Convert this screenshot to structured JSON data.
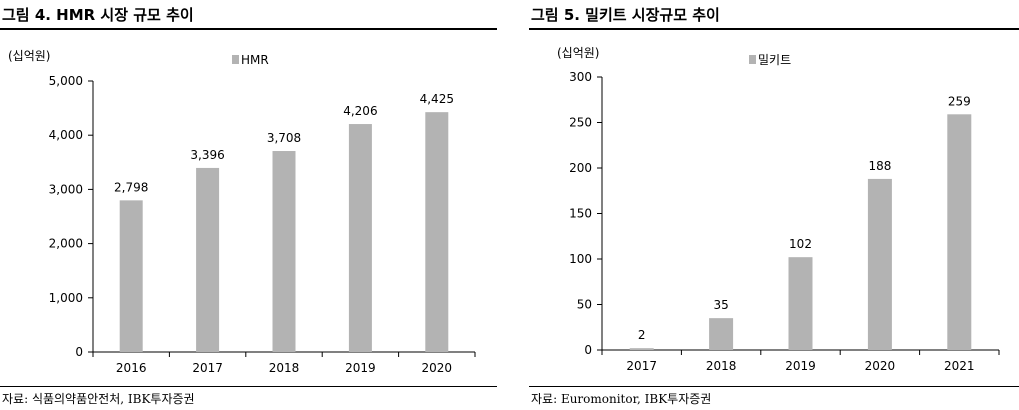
{
  "left": {
    "title": "그림 4. HMR 시장 규모 추이",
    "source": "자료: 식품의약품안전처, IBK투자증권",
    "chart_data": {
      "type": "bar",
      "unit_label": "(십억원)",
      "categories": [
        "2016",
        "2017",
        "2018",
        "2019",
        "2020"
      ],
      "series": [
        {
          "name": "HMR",
          "values": [
            2798,
            3396,
            3708,
            4206,
            4425
          ]
        }
      ],
      "data_labels": [
        "2,798",
        "3,396",
        "3,708",
        "4,206",
        "4,425"
      ],
      "ylim": [
        0,
        5000
      ],
      "yticks": [
        0,
        1000,
        2000,
        3000,
        4000,
        5000
      ],
      "ytick_labels": [
        "0",
        "1,000",
        "2,000",
        "3,000",
        "4,000",
        "5,000"
      ],
      "legend_position": "top-center",
      "grid": false,
      "bar_color": "#b3b3b3"
    }
  },
  "right": {
    "title": "그림 5. 밀키트 시장규모 추이",
    "source": "자료: Euromonitor, IBK투자증권",
    "chart_data": {
      "type": "bar",
      "unit_label": "(십억원)",
      "categories": [
        "2017",
        "2018",
        "2019",
        "2020",
        "2021"
      ],
      "series": [
        {
          "name": "밀키트",
          "values": [
            2,
            35,
            102,
            188,
            259
          ]
        }
      ],
      "data_labels": [
        "2",
        "35",
        "102",
        "188",
        "259"
      ],
      "ylim": [
        0,
        300
      ],
      "yticks": [
        0,
        50,
        100,
        150,
        200,
        250,
        300
      ],
      "ytick_labels": [
        "0",
        "50",
        "100",
        "150",
        "200",
        "250",
        "300"
      ],
      "legend_position": "top-center",
      "grid": false,
      "bar_color": "#b3b3b3"
    }
  }
}
